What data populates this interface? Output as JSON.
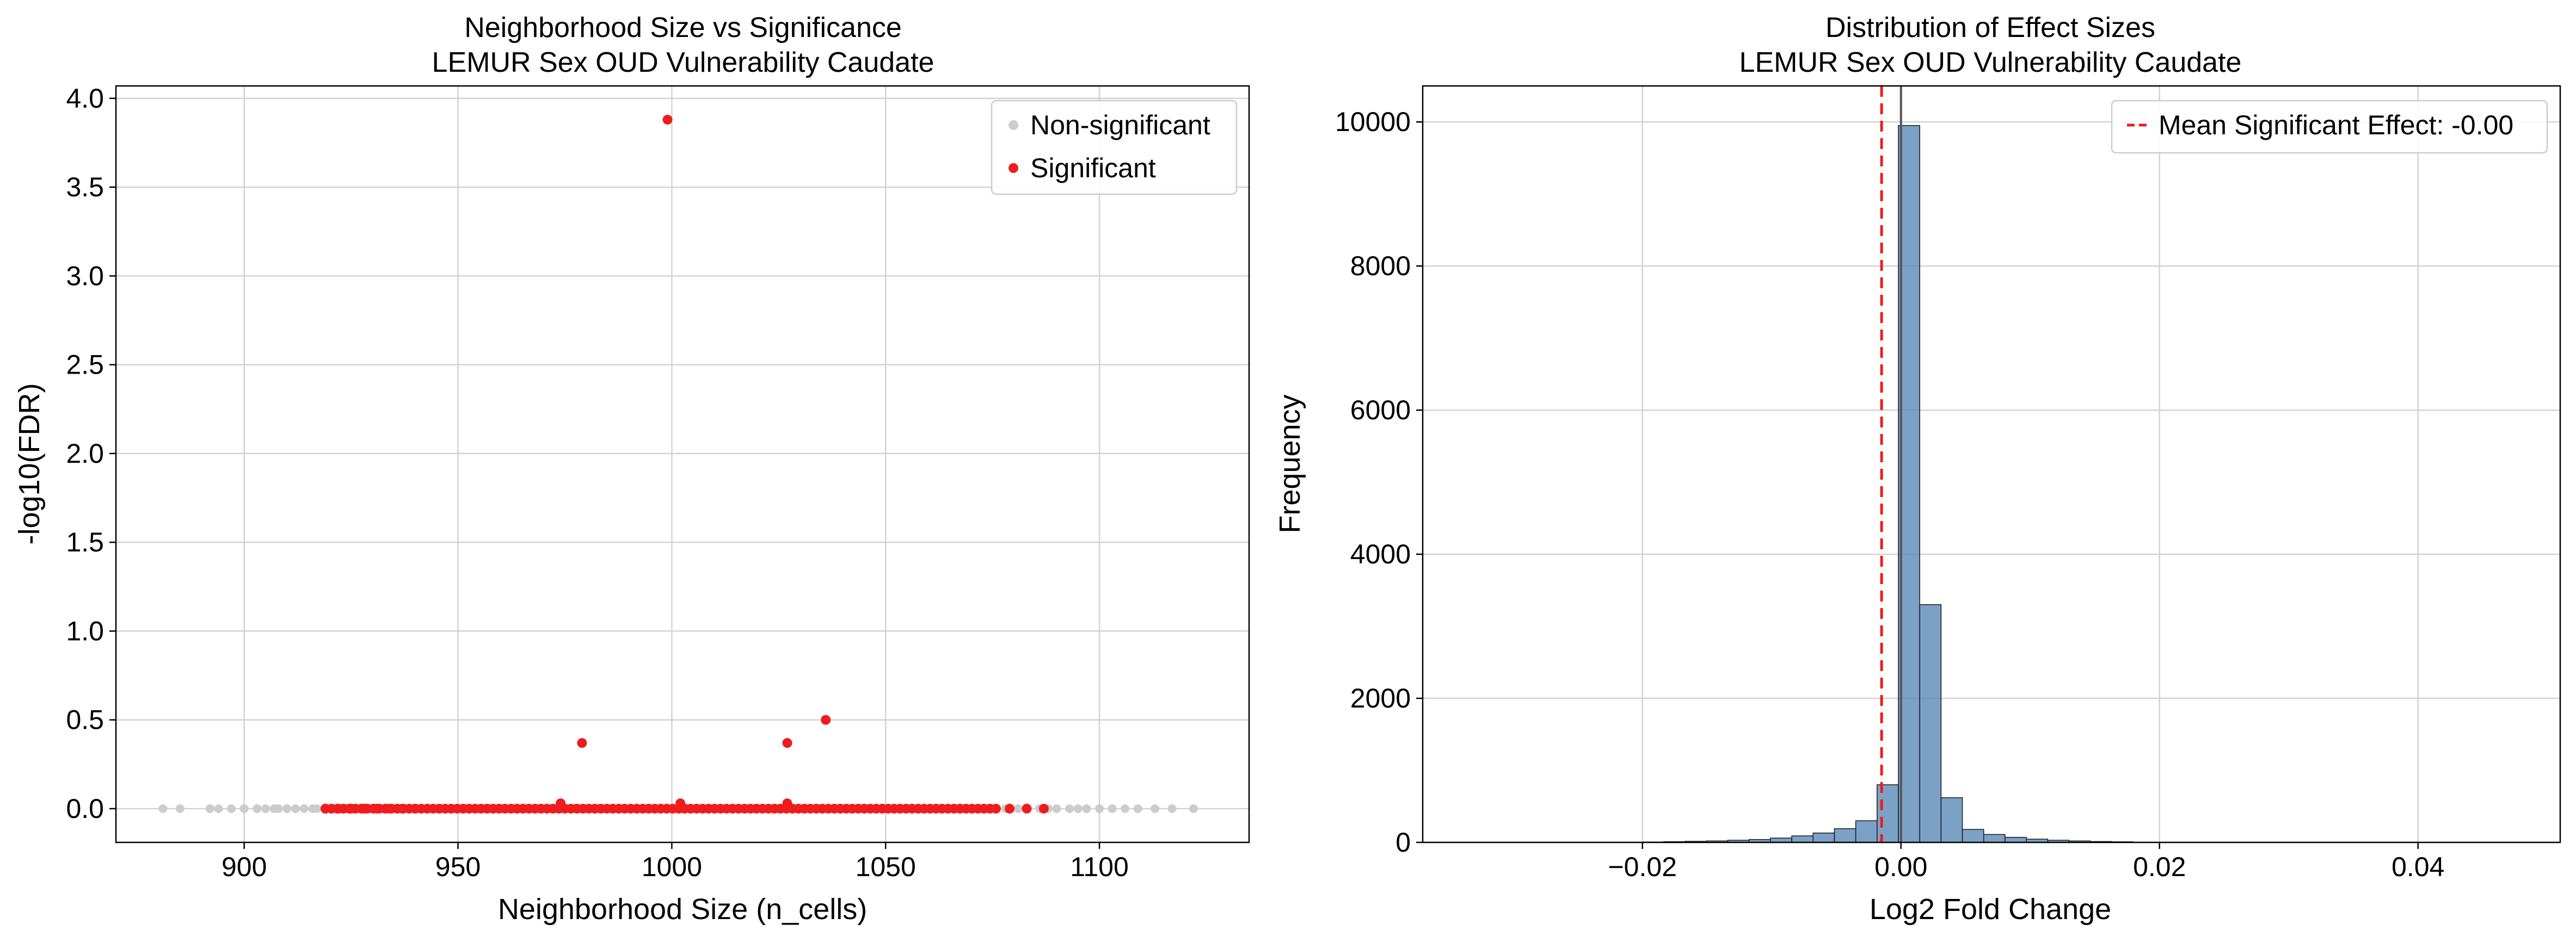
{
  "chart_data": [
    {
      "type": "scatter",
      "title_line1": "Neighborhood Size vs Significance",
      "title_line2": "LEMUR Sex OUD Vulnerability Caudate",
      "xlabel": "Neighborhood Size (n_cells)",
      "ylabel": "-log10(FDR)",
      "xlim": [
        870,
        1135
      ],
      "ylim": [
        -0.19,
        4.07
      ],
      "xticks": [
        "900",
        "950",
        "1000",
        "1050",
        "1100"
      ],
      "xtick_values": [
        900,
        950,
        1000,
        1050,
        1100
      ],
      "yticks": [
        "0.0",
        "0.5",
        "1.0",
        "1.5",
        "2.0",
        "2.5",
        "3.0",
        "3.5",
        "4.0"
      ],
      "ytick_values": [
        0.0,
        0.5,
        1.0,
        1.5,
        2.0,
        2.5,
        3.0,
        3.5,
        4.0
      ],
      "grid": true,
      "legend_position": "top-right",
      "colors": {
        "non_significant": "#cccccc",
        "significant": "#ee1c1c"
      },
      "series": [
        {
          "name": "Non-significant",
          "x": [
            881,
            885,
            892,
            894,
            897,
            900,
            903,
            905,
            907,
            908,
            910,
            912,
            914,
            916,
            917,
            1078,
            1081,
            1083,
            1086,
            1088,
            1090,
            1093,
            1095,
            1097,
            1100,
            1103,
            1106,
            1109,
            1113,
            1117,
            1122
          ],
          "y": [
            0,
            0,
            0,
            0,
            0,
            0,
            0,
            0,
            0,
            0,
            0,
            0,
            0,
            0,
            0,
            0,
            0,
            0,
            0,
            0,
            0,
            0,
            0,
            0,
            0,
            0,
            0,
            0,
            0,
            0,
            0
          ]
        },
        {
          "name": "Significant",
          "band_x_range": [
            919,
            1077
          ],
          "band_y": 0.0,
          "x": [
            919,
            922,
            925,
            928,
            931,
            934,
            937,
            940,
            1079,
            1083,
            1087,
            999,
            979,
            1027,
            1036,
            974,
            1002,
            1027
          ],
          "y": [
            0,
            0,
            0,
            0,
            0,
            0,
            0,
            0,
            0,
            0,
            0,
            3.88,
            0.37,
            0.37,
            0.5,
            0.03,
            0.03,
            0.03
          ]
        }
      ]
    },
    {
      "type": "bar",
      "title_line1": "Distribution of Effect Sizes",
      "title_line2": "LEMUR Sex OUD Vulnerability Caudate",
      "xlabel": "Log2 Fold Change",
      "ylabel": "Frequency",
      "xlim": [
        -0.037,
        0.051
      ],
      "ylim": [
        0,
        10500
      ],
      "xticks": [
        "−0.02",
        "0.00",
        "0.02",
        "0.04"
      ],
      "xtick_values": [
        -0.02,
        0.0,
        0.02,
        0.04
      ],
      "yticks": [
        "0",
        "2000",
        "4000",
        "6000",
        "8000",
        "10000"
      ],
      "ytick_values": [
        0,
        2000,
        4000,
        6000,
        8000,
        10000
      ],
      "grid": true,
      "legend_position": "top-right",
      "colors": {
        "bars": "#4f81b3",
        "mean_line": "#ee1c1c",
        "zero_line": "#555555"
      },
      "bin_width": 0.00165,
      "bins": [
        {
          "x0": -0.02,
          "count": 5
        },
        {
          "x0": -0.01835,
          "count": 10
        },
        {
          "x0": -0.0167,
          "count": 15
        },
        {
          "x0": -0.01505,
          "count": 20
        },
        {
          "x0": -0.0134,
          "count": 30
        },
        {
          "x0": -0.01175,
          "count": 40
        },
        {
          "x0": -0.0101,
          "count": 60
        },
        {
          "x0": -0.00845,
          "count": 90
        },
        {
          "x0": -0.0068,
          "count": 130
        },
        {
          "x0": -0.00515,
          "count": 190
        },
        {
          "x0": -0.0035,
          "count": 300
        },
        {
          "x0": -0.00185,
          "count": 800
        },
        {
          "x0": -0.0002,
          "count": 9950
        },
        {
          "x0": 0.00145,
          "count": 3300
        },
        {
          "x0": 0.0031,
          "count": 620
        },
        {
          "x0": 0.00475,
          "count": 180
        },
        {
          "x0": 0.0064,
          "count": 110
        },
        {
          "x0": 0.00805,
          "count": 70
        },
        {
          "x0": 0.0097,
          "count": 45
        },
        {
          "x0": 0.01135,
          "count": 30
        },
        {
          "x0": 0.013,
          "count": 20
        },
        {
          "x0": 0.01465,
          "count": 12
        },
        {
          "x0": 0.0163,
          "count": 8
        }
      ],
      "mean_significant_effect": -0.0015,
      "legend_label": "Mean Significant Effect: -0.00"
    }
  ]
}
